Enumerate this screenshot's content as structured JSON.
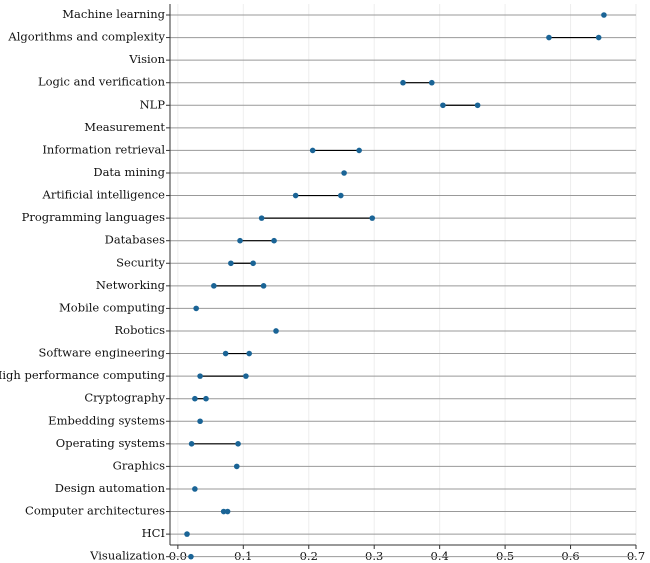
{
  "chart_data": {
    "type": "dumbbell",
    "categories": [
      "Machine learning",
      "Algorithms and complexity",
      "Vision",
      "Logic and verification",
      "NLP",
      "Measurement",
      "Information retrieval",
      "Data mining",
      "Artificial intelligence",
      "Programming languages",
      "Databases",
      "Security",
      "Networking",
      "Mobile computing",
      "Robotics",
      "Software engineering",
      "High performance computing",
      "Cryptography",
      "Embedding systems",
      "Operating systems",
      "Graphics",
      "Design automation",
      "Computer architectures",
      "HCI",
      "Visualization"
    ],
    "series": [
      {
        "color": "#1a6496",
        "values": [
          0.651,
          0.567,
          null,
          0.344,
          0.405,
          null,
          0.206,
          0.254,
          0.18,
          0.128,
          0.095,
          0.081,
          0.055,
          0.028,
          0.15,
          0.073,
          0.034,
          0.026,
          0.034,
          0.021,
          0.09,
          0.026,
          0.07,
          0.014,
          0.02
        ]
      },
      {
        "color": "#1a6496",
        "values": [
          null,
          0.643,
          null,
          0.388,
          0.458,
          null,
          0.277,
          null,
          0.249,
          0.297,
          0.147,
          0.115,
          0.131,
          null,
          null,
          0.109,
          0.104,
          0.043,
          null,
          0.092,
          null,
          null,
          0.076,
          null,
          null
        ]
      }
    ],
    "line_color": "#000000",
    "xlim": [
      -0.012,
      0.7
    ],
    "xticks": [
      {
        "value": 0,
        "label": "0.0"
      },
      0.1,
      0.2,
      0.3,
      0.4,
      0.5,
      0.6,
      0.7
    ],
    "grid": true
  }
}
